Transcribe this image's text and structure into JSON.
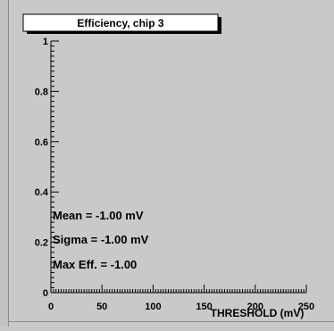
{
  "chart_data": {
    "type": "line",
    "title": "Efficiency, chip 3",
    "xlabel": "THRESHOLD (mV)",
    "ylabel": "",
    "xlim": [
      0,
      250
    ],
    "ylim": [
      0,
      1
    ],
    "x_ticks": [
      "0",
      "50",
      "100",
      "150",
      "200",
      "250"
    ],
    "y_ticks": [
      "0",
      "0.2",
      "0.4",
      "0.6",
      "0.8",
      "1"
    ],
    "series": [
      {
        "x": [],
        "y": []
      }
    ],
    "grid": false,
    "annotations": [
      "Mean = -1.00 mV",
      "Sigma = -1.00 mV",
      "Max Eff. = -1.00"
    ]
  }
}
